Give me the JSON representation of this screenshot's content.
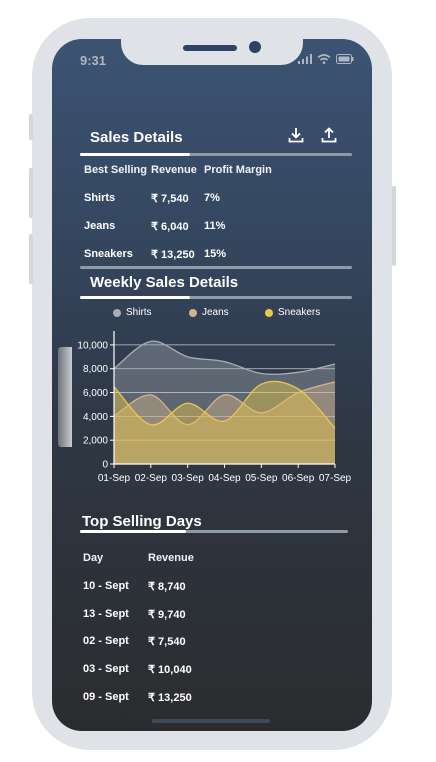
{
  "status_bar": {
    "time": "9:31"
  },
  "sales_details": {
    "title": "Sales Details",
    "headers": [
      "Best Selling",
      "Revenue",
      "Profit Margin"
    ],
    "rows": [
      {
        "item": "Shirts",
        "revenue": "₹ 7,540",
        "margin": "7%"
      },
      {
        "item": "Jeans",
        "revenue": "₹ 6,040",
        "margin": "11%"
      },
      {
        "item": "Sneakers",
        "revenue": "₹ 13,250",
        "margin": "15%"
      }
    ]
  },
  "weekly": {
    "title": "Weekly Sales Details"
  },
  "chart_data": {
    "type": "area",
    "x": [
      "01-Sep",
      "02-Sep",
      "03-Sep",
      "04-Sep",
      "05-Sep",
      "06-Sep",
      "07-Sep"
    ],
    "ylim": [
      0,
      11000
    ],
    "yticks": [
      "0",
      "2,000",
      "4,000",
      "6,000",
      "8,000",
      "10,000"
    ],
    "ytick_values": [
      0,
      2000,
      4000,
      6000,
      8000,
      10000
    ],
    "grid": true,
    "legend_position": "top",
    "series": [
      {
        "name": "Shirts",
        "color": "#a8adb6",
        "values": [
          8000,
          10300,
          9000,
          8600,
          7600,
          7700,
          8400
        ]
      },
      {
        "name": "Jeans",
        "color": "#d3b48a",
        "values": [
          4000,
          5800,
          3300,
          5800,
          4300,
          6000,
          6900
        ]
      },
      {
        "name": "Sneakers",
        "color": "#e8c84a",
        "values": [
          6500,
          3300,
          5100,
          3600,
          6700,
          6300,
          3000
        ]
      }
    ]
  },
  "top_days": {
    "title": "Top Selling Days",
    "headers": [
      "Day",
      "Revenue"
    ],
    "rows": [
      {
        "day": "10 - Sept",
        "revenue": "₹ 8,740"
      },
      {
        "day": "13 - Sept",
        "revenue": "₹ 9,740"
      },
      {
        "day": "02 - Sept",
        "revenue": "₹ 7,540"
      },
      {
        "day": "03 - Sept",
        "revenue": "₹ 10,040"
      },
      {
        "day": "09 - Sept",
        "revenue": "₹ 13,250"
      }
    ]
  }
}
